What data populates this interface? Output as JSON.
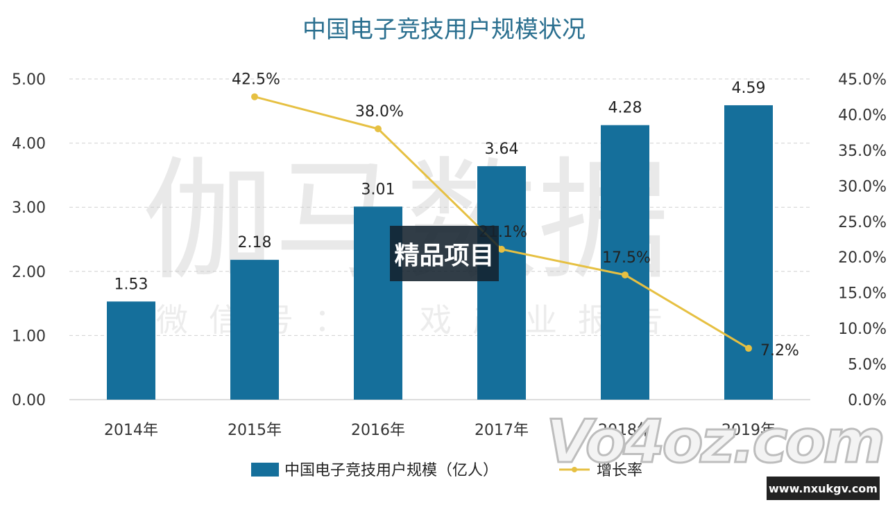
{
  "watermark": {
    "text_large": "伽马数据",
    "text_small": "微信号：游戏产业报告"
  },
  "badge": {
    "text": "精品项目"
  },
  "logo": {
    "text": "Vo4oz.com",
    "site": "www.nxukgv.com"
  },
  "colors": {
    "bar": "#156f9b",
    "line": "#e6c042",
    "title": "#2a6f8f",
    "grid": "#d0d0d0"
  },
  "chart_data": {
    "type": "bar",
    "title": "中国电子竞技用户规模状况",
    "categories": [
      "2014年",
      "2015年",
      "2016年",
      "2017年",
      "2018年",
      "2019年"
    ],
    "series": [
      {
        "name": "中国电子竞技用户规模（亿人）",
        "type": "bar",
        "axis": "left",
        "values": [
          1.53,
          2.18,
          3.01,
          3.64,
          4.28,
          4.59
        ],
        "labels": [
          "1.53",
          "2.18",
          "3.01",
          "3.64",
          "4.28",
          "4.59"
        ]
      },
      {
        "name": "增长率",
        "type": "line",
        "axis": "right",
        "values": [
          null,
          42.5,
          38.0,
          21.1,
          17.5,
          7.2
        ],
        "labels": [
          "",
          "42.5%",
          "38.0%",
          "21.1%",
          "17.5%",
          "7.2%"
        ]
      }
    ],
    "y_left": {
      "min": 0,
      "max": 5,
      "ticks": [
        "0.00",
        "1.00",
        "2.00",
        "3.00",
        "4.00",
        "5.00"
      ]
    },
    "y_right": {
      "min": 0,
      "max": 45,
      "ticks": [
        "0.0%",
        "5.0%",
        "10.0%",
        "15.0%",
        "20.0%",
        "25.0%",
        "30.0%",
        "35.0%",
        "40.0%",
        "45.0%"
      ]
    },
    "grid": true,
    "legend_position": "bottom"
  }
}
